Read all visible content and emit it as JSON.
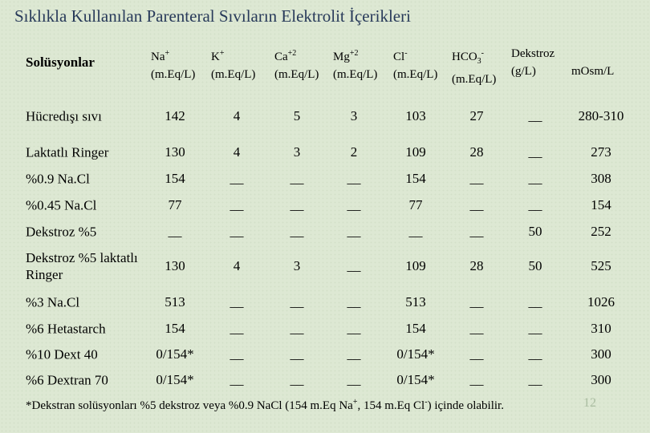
{
  "title": "Sıklıkla Kullanılan Parenteral Sıvıların Elektrolit İçerikleri",
  "table": {
    "header": [
      {
        "main": "Solüsyonlar"
      },
      {
        "main": "Na",
        "sup": "+",
        "unit": "(m.Eq/L)"
      },
      {
        "main": "K",
        "sup": "+",
        "unit": "(m.Eq/L)"
      },
      {
        "main": "Ca",
        "sup": "+2",
        "unit": "(m.Eq/L)"
      },
      {
        "main": "Mg",
        "sup": "+2",
        "unit": "(m.Eq/L)"
      },
      {
        "main": "Cl",
        "sup": "-",
        "unit": "(m.Eq/L)"
      },
      {
        "main": "HCO",
        "sub": "3",
        "sup": "-",
        "unit": "(m.Eq/L)"
      },
      {
        "main": "Dekstroz",
        "unit": "(g/L)"
      },
      {
        "unit": "mOsm/L"
      }
    ],
    "rows": [
      [
        "Hücredışı sıvı",
        142,
        4,
        5,
        3,
        103,
        27,
        "__",
        "280-310"
      ],
      [
        "Laktatlı Ringer",
        130,
        4,
        3,
        2,
        109,
        28,
        "__",
        273
      ],
      [
        "%0.9 Na.Cl",
        154,
        "__",
        "__",
        "__",
        154,
        "__",
        "__",
        308
      ],
      [
        "%0.45 Na.Cl",
        77,
        "__",
        "__",
        "__",
        77,
        "__",
        "__",
        154
      ],
      [
        "Dekstroz %5",
        "__",
        "__",
        "__",
        "__",
        "__",
        "__",
        50,
        252
      ],
      [
        "Dekstroz %5 laktatlı Ringer",
        130,
        4,
        3,
        "__",
        109,
        28,
        50,
        525
      ],
      [
        "%3 Na.Cl",
        513,
        "__",
        "__",
        "__",
        513,
        "__",
        "__",
        1026
      ],
      [
        "%6 Hetastarch",
        154,
        "__",
        "__",
        "__",
        154,
        "__",
        "__",
        310
      ],
      [
        "%10 Dext 40",
        "0/154*",
        "__",
        "__",
        "__",
        "0/154*",
        "__",
        "__",
        300
      ],
      [
        "%6 Dextran 70",
        "0/154*",
        "__",
        "__",
        "__",
        "0/154*",
        "__",
        "__",
        300
      ]
    ]
  },
  "footnote": [
    {
      "text": "*Dekstran solüsyonları %5 dekstroz veya %0.9 NaCl (154 m.Eq Na"
    },
    {
      "text": "+",
      "sup": true
    },
    {
      "text": ", 154 m.Eq Cl"
    },
    {
      "text": "-",
      "sup": true
    },
    {
      "text": ") içinde olabilir."
    }
  ],
  "page_number": "12"
}
